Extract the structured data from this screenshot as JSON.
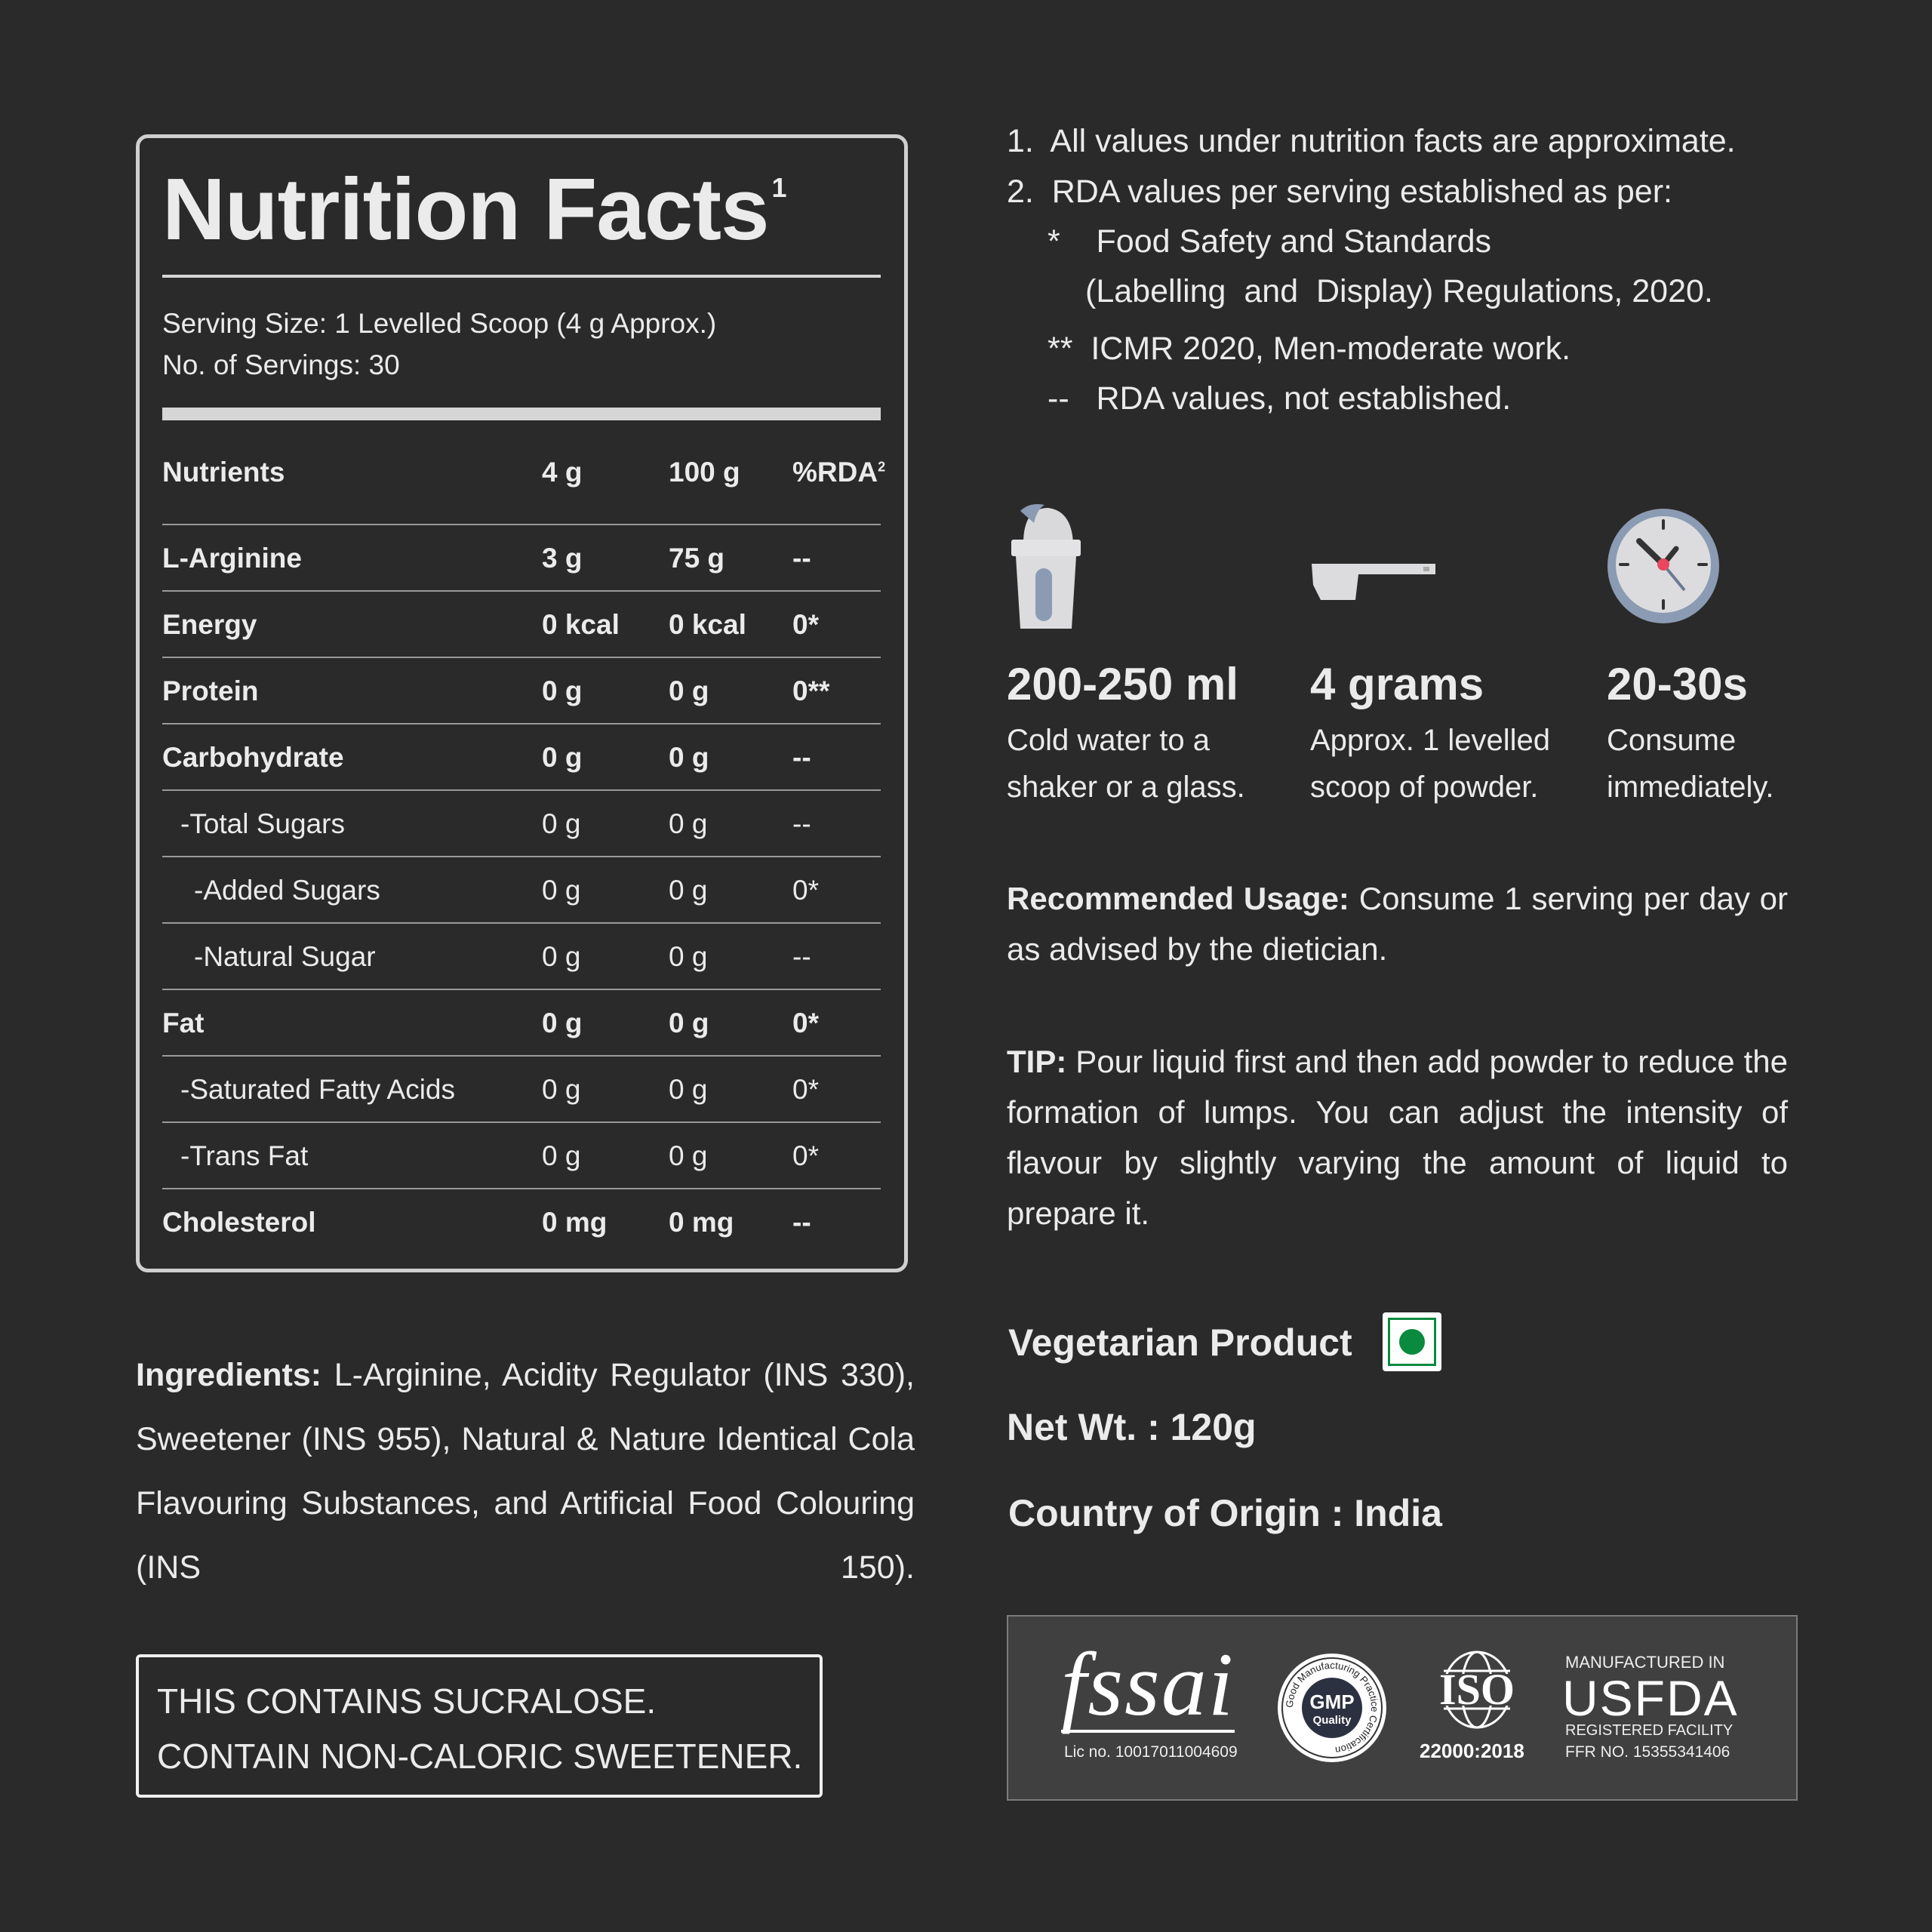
{
  "nutrition": {
    "title": "Nutrition Facts",
    "title_sup": "1",
    "serving_size": "Serving Size: 1 Levelled Scoop (4 g Approx.)",
    "servings": "No. of Servings: 30",
    "headers": [
      "Nutrients",
      "4 g",
      "100 g",
      "%RDA"
    ],
    "rda_sup": "2",
    "rows": [
      {
        "name": "L-Arginine",
        "v4g": "3 g",
        "v100g": "75 g",
        "rda": "--",
        "style": "bold"
      },
      {
        "name": "Energy",
        "v4g": "0 kcal",
        "v100g": "0 kcal",
        "rda": "0*",
        "style": "bold"
      },
      {
        "name": "Protein",
        "v4g": "0 g",
        "v100g": "0 g",
        "rda": "0**",
        "style": "bold"
      },
      {
        "name": "Carbohydrate",
        "v4g": "0 g",
        "v100g": "0 g",
        "rda": "--",
        "style": "bold"
      },
      {
        "name": "-Total Sugars",
        "v4g": "0 g",
        "v100g": "0 g",
        "rda": "--",
        "style": "ind1"
      },
      {
        "name": "-Added Sugars",
        "v4g": "0 g",
        "v100g": "0 g",
        "rda": "0*",
        "style": "ind2"
      },
      {
        "name": "-Natural Sugar",
        "v4g": "0 g",
        "v100g": "0 g",
        "rda": "--",
        "style": "ind2"
      },
      {
        "name": "Fat",
        "v4g": "0 g",
        "v100g": "0 g",
        "rda": "0*",
        "style": "bold"
      },
      {
        "name": "-Saturated Fatty Acids",
        "v4g": "0 g",
        "v100g": "0 g",
        "rda": "0*",
        "style": "ind1"
      },
      {
        "name": "-Trans Fat",
        "v4g": "0 g",
        "v100g": "0 g",
        "rda": "0*",
        "style": "ind1"
      },
      {
        "name": "Cholesterol",
        "v4g": "0 mg",
        "v100g": "0 mg",
        "rda": "--",
        "style": "bold"
      }
    ]
  },
  "notes": [
    "1.  All values under nutrition facts are approximate.",
    "2.  RDA values per serving established as per:",
    "*    Food Safety and Standards",
    "(Labelling  and  Display) Regulations, 2020.",
    "**  ICMR 2020, Men-moderate work.",
    "--   RDA values, not established."
  ],
  "steps": [
    {
      "icon": "shaker-icon",
      "title": "200-250 ml",
      "line1": "Cold water to a",
      "line2": "shaker or a glass."
    },
    {
      "icon": "scoop-icon",
      "title": "4 grams",
      "line1": "Approx. 1 levelled",
      "line2": "scoop of powder."
    },
    {
      "icon": "clock-icon",
      "title": "20-30s",
      "line1": "Consume",
      "line2": "immediately."
    }
  ],
  "usage": {
    "label": "Recommended Usage:",
    "text": " Consume 1 serving per day or as advised by the dietician."
  },
  "tip": {
    "label": "TIP:",
    "text": " Pour liquid first and then add powder to reduce the formation of lumps. You can adjust the intensity of flavour by slightly varying the amount of liquid to prepare it."
  },
  "veg": {
    "label": "Vegetarian Product",
    "color": "#0a8a3e"
  },
  "net_wt": "Net Wt. : 120g",
  "origin": "Country of Origin : India",
  "ingredients": {
    "label": "Ingredients:",
    "text": " L-Arginine, Acidity Regulator (INS 330), Sweetener (INS 955), Natural & Nature Identical Cola Flavouring Substances, and Artificial Food Colouring (INS 150)."
  },
  "warning": [
    "THIS CONTAINS SUCRALOSE.",
    "CONTAIN NON-CALORIC SWEETENER."
  ],
  "certifications": {
    "fssai": {
      "logo": "fssai",
      "lic": "Lic no. 10017011004609"
    },
    "gmp": {
      "center": "GMP",
      "center2": "Quality",
      "ring": "Good Manufacturing Practice Certification"
    },
    "iso": {
      "logo": "ISO",
      "number": "22000:2018"
    },
    "usfda": {
      "top": "MANUFACTURED IN",
      "main": "USFDA",
      "line1": "REGISTERED FACILITY",
      "line2": "FFR NO. 15355341406"
    }
  }
}
